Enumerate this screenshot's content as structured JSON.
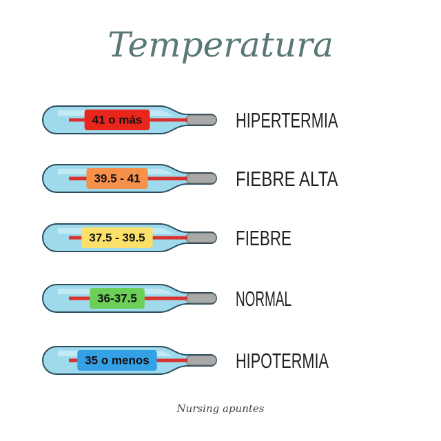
{
  "title": "Temperatura",
  "rows": [
    {
      "range": "41 o más",
      "state": "HIPERTERMIA",
      "color": "#e8261c"
    },
    {
      "range": "39.5 - 41",
      "state": "FIEBRE ALTA",
      "color": "#f5914a"
    },
    {
      "range": "37.5 - 39.5",
      "state": "FIEBRE",
      "color": "#fbe06a"
    },
    {
      "range": "36-37.5",
      "state": "NORMAL",
      "color": "#6ccf58"
    },
    {
      "range": "35 o menos",
      "state": "HIPOTERMIA",
      "color": "#34a0e6"
    }
  ],
  "footer": "Nursing apuntes"
}
